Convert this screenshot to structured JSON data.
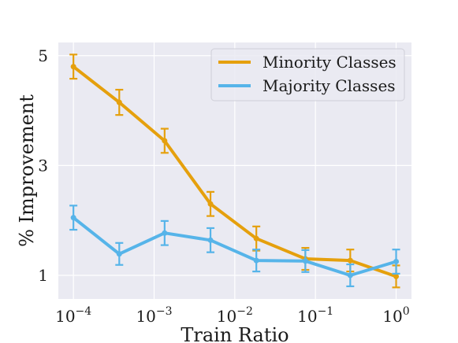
{
  "chart_data": {
    "type": "line",
    "xlabel": "Train Ratio",
    "ylabel": "% Improvement",
    "xscale": "log",
    "xlim": [
      6.5e-05,
      1.55
    ],
    "ylim": [
      0.57,
      5.24
    ],
    "grid": true,
    "legend_position": "top-right",
    "x_ticks": [
      {
        "value": 0.0001,
        "base": "10",
        "exp": "−4"
      },
      {
        "value": 0.001,
        "base": "10",
        "exp": "−3"
      },
      {
        "value": 0.01,
        "base": "10",
        "exp": "−2"
      },
      {
        "value": 0.1,
        "base": "10",
        "exp": "−1"
      },
      {
        "value": 1,
        "base": "10",
        "exp": "0"
      }
    ],
    "y_ticks": [
      {
        "value": 1,
        "label": "1"
      },
      {
        "value": 3,
        "label": "3"
      },
      {
        "value": 5,
        "label": "5"
      }
    ],
    "x": [
      0.0001,
      0.00037,
      0.00135,
      0.005,
      0.0185,
      0.075,
      0.27,
      1
    ],
    "series": [
      {
        "name": "Minority Classes",
        "color": "#e5a00d",
        "values": [
          4.8,
          4.15,
          3.45,
          2.3,
          1.67,
          1.3,
          1.27,
          0.98
        ],
        "errors": [
          0.22,
          0.23,
          0.22,
          0.22,
          0.22,
          0.2,
          0.2,
          0.2
        ]
      },
      {
        "name": "Majority Classes",
        "color": "#56b4e9",
        "values": [
          2.05,
          1.39,
          1.77,
          1.64,
          1.27,
          1.26,
          1.0,
          1.25
        ],
        "errors": [
          0.22,
          0.2,
          0.22,
          0.22,
          0.2,
          0.2,
          0.2,
          0.22
        ]
      }
    ]
  }
}
